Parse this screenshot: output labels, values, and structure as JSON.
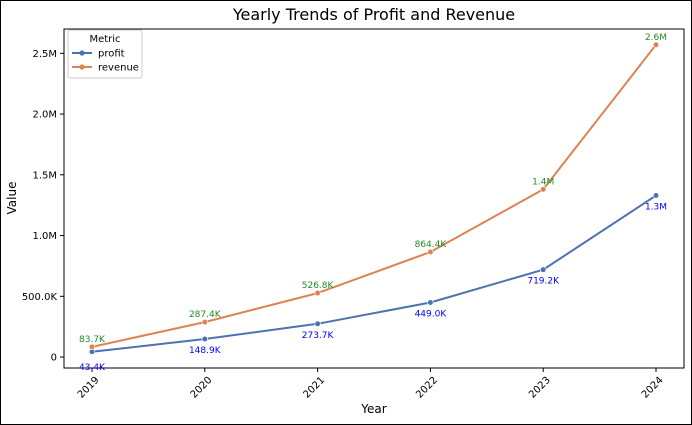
{
  "chart_data": {
    "type": "line",
    "title": "Yearly Trends of Profit and Revenue",
    "xlabel": "Year",
    "ylabel": "Value",
    "x": [
      "2019",
      "2020",
      "2021",
      "2022",
      "2023",
      "2024"
    ],
    "yticks": [
      0,
      500000,
      1000000,
      1500000,
      2000000,
      2500000
    ],
    "ytick_labels": [
      "0",
      "500.0K",
      "1.0M",
      "1.5M",
      "2.0M",
      "2.5M"
    ],
    "ylim": [
      -90000,
      2700000
    ],
    "grid": false,
    "legend": {
      "title": "Metric",
      "placement": "top-left"
    },
    "series": [
      {
        "name": "profit",
        "color": "#4c72b0",
        "label_color": "#0000ff",
        "values": [
          43400,
          148900,
          273700,
          449000,
          719200,
          1330000
        ],
        "labels": [
          "43.4K",
          "148.9K",
          "273.7K",
          "449.0K",
          "719.2K",
          "1.3M"
        ]
      },
      {
        "name": "revenue",
        "color": "#dd8452",
        "label_color": "#228b22",
        "values": [
          83700,
          287400,
          526800,
          864400,
          1380000,
          2570000
        ],
        "labels": [
          "83.7K",
          "287.4K",
          "526.8K",
          "864.4K",
          "1.4M",
          "2.6M"
        ]
      }
    ]
  }
}
